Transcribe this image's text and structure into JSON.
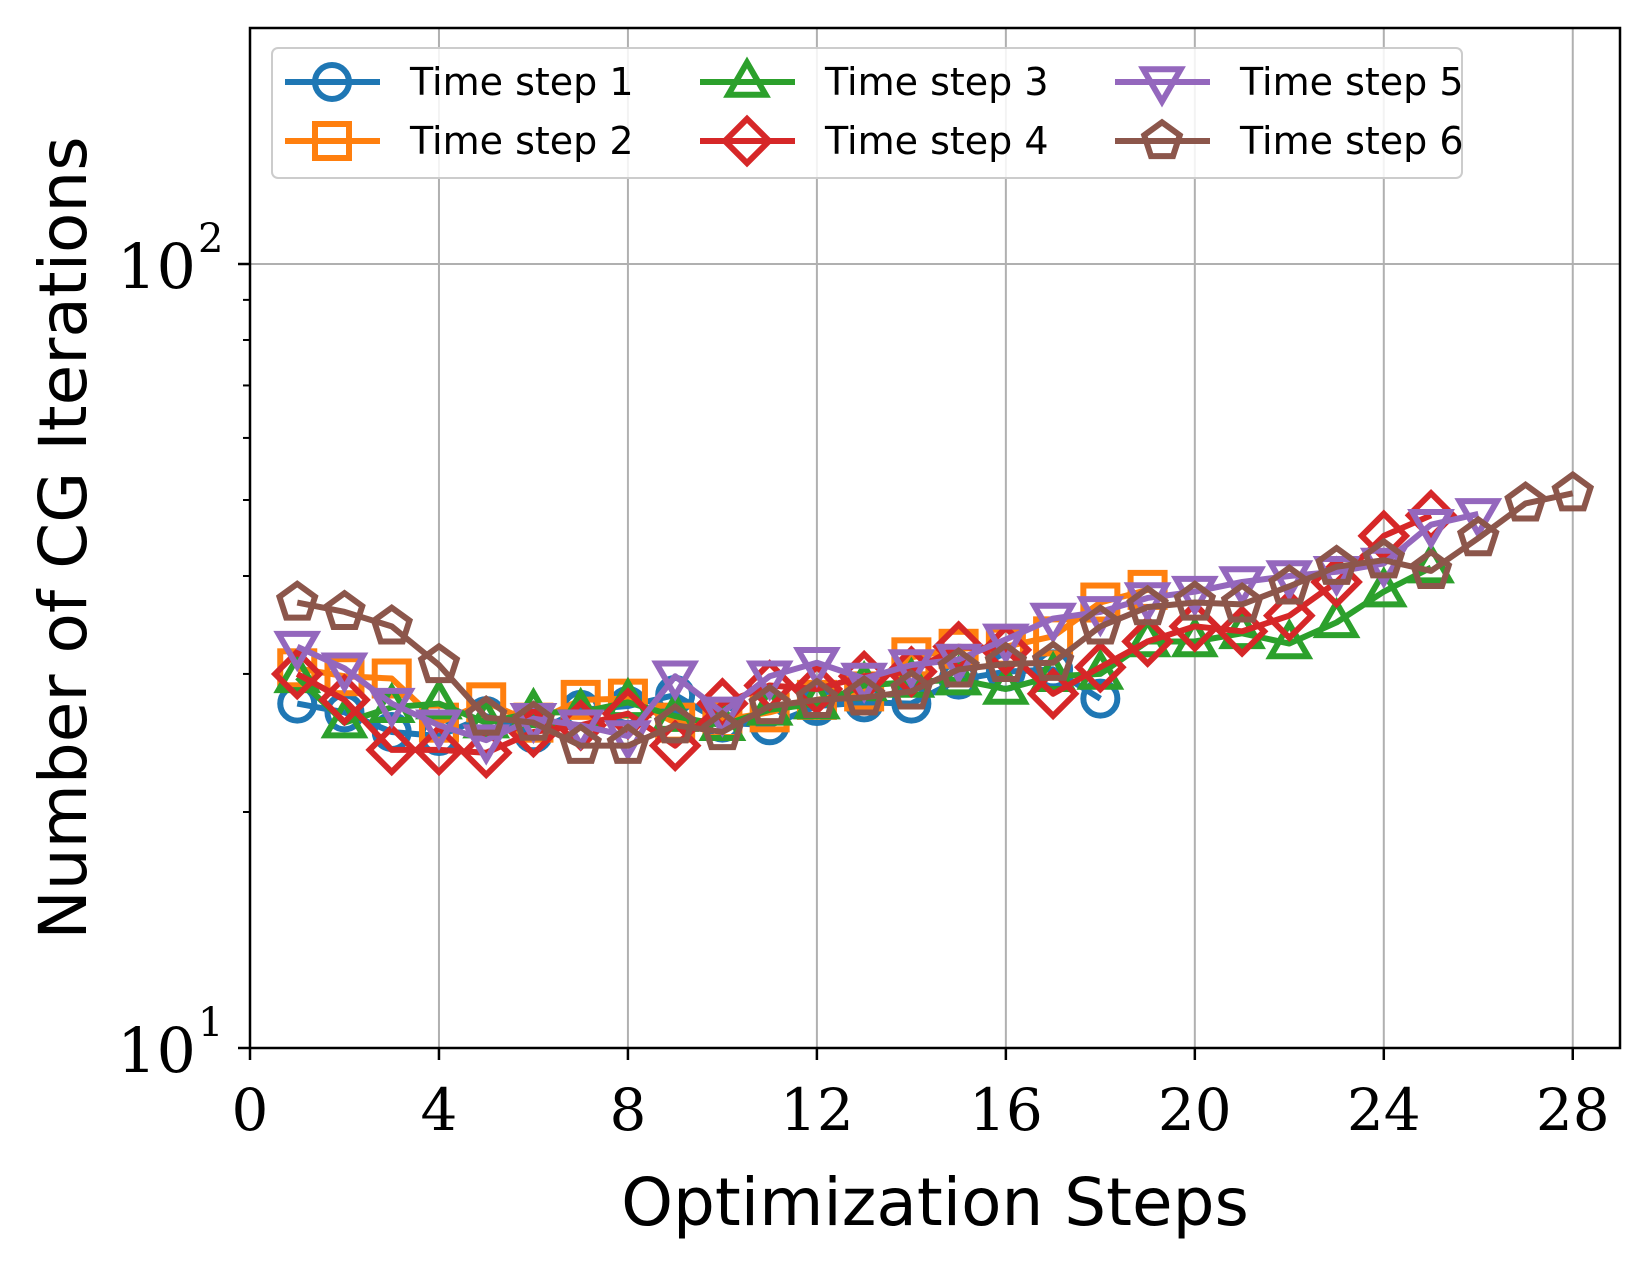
{
  "chart_data": {
    "type": "line",
    "xlabel": "Optimization Steps",
    "ylabel": "Number of CG Iterations",
    "xlim": [
      0,
      29
    ],
    "ylim": [
      10,
      200
    ],
    "yscale": "log",
    "grid": true,
    "x_ticks": [
      0,
      4,
      8,
      12,
      16,
      20,
      24,
      28
    ],
    "y_ticks": [
      {
        "value": 10,
        "base": "10",
        "exp": "1"
      },
      {
        "value": 100,
        "base": "10",
        "exp": "2"
      }
    ],
    "legend_position": "top-left",
    "series": [
      {
        "name": "Time step 1",
        "color": "#1f77b4",
        "marker": "circle",
        "x": [
          1,
          2,
          3,
          4,
          5,
          6,
          7,
          8,
          9,
          10,
          11,
          12,
          13,
          14,
          15,
          16,
          17,
          18
        ],
        "y": [
          27.5,
          26.8,
          25.3,
          25.0,
          26.5,
          25.2,
          27.0,
          27.3,
          28.2,
          26.0,
          25.8,
          27.3,
          27.6,
          27.5,
          29.5,
          30.2,
          30.4,
          27.9
        ]
      },
      {
        "name": "Time step 2",
        "color": "#ff7f0e",
        "marker": "square",
        "x": [
          1,
          2,
          3,
          4,
          5,
          6,
          7,
          8,
          9,
          10,
          11,
          12,
          13,
          14,
          15,
          16,
          17,
          18,
          19
        ],
        "y": [
          30.5,
          29.8,
          29.6,
          26.0,
          27.6,
          26.0,
          27.8,
          27.9,
          26.0,
          26.2,
          26.8,
          27.8,
          28.5,
          31.5,
          32.3,
          32.5,
          33.5,
          37.0,
          38.4
        ]
      },
      {
        "name": "Time step 3",
        "color": "#2ca02c",
        "marker": "triangle-up",
        "x": [
          1,
          2,
          3,
          4,
          5,
          6,
          7,
          8,
          9,
          10,
          11,
          12,
          13,
          14,
          15,
          16,
          17,
          18,
          19,
          20,
          21,
          22,
          23,
          24,
          25
        ],
        "y": [
          29.7,
          26.0,
          27.2,
          27.5,
          26.0,
          26.8,
          26.8,
          27.6,
          26.5,
          25.8,
          27.0,
          27.5,
          29.0,
          29.3,
          29.5,
          28.7,
          29.8,
          30.0,
          33.0,
          33.0,
          33.8,
          32.8,
          34.9,
          38.2,
          41.0
        ]
      },
      {
        "name": "Time step 4",
        "color": "#d62728",
        "marker": "diamond",
        "x": [
          1,
          2,
          3,
          4,
          5,
          6,
          7,
          8,
          9,
          10,
          11,
          12,
          13,
          14,
          15,
          16,
          17,
          18,
          19,
          20,
          21,
          22,
          23,
          24,
          25
        ],
        "y": [
          30.0,
          27.8,
          24.0,
          24.0,
          23.8,
          25.3,
          25.8,
          26.7,
          24.3,
          27.5,
          29.0,
          28.7,
          29.8,
          30.2,
          32.5,
          32.2,
          28.3,
          30.6,
          33.0,
          34.5,
          34.0,
          35.6,
          39.3,
          45.0,
          47.8
        ]
      },
      {
        "name": "Time step 5",
        "color": "#9467bd",
        "marker": "triangle-down",
        "x": [
          1,
          2,
          3,
          4,
          5,
          6,
          7,
          8,
          9,
          10,
          11,
          12,
          13,
          14,
          15,
          16,
          17,
          18,
          19,
          20,
          21,
          22,
          23,
          24,
          25,
          26
        ],
        "y": [
          32.5,
          30.5,
          27.5,
          25.8,
          24.7,
          26.3,
          25.8,
          25.0,
          29.8,
          26.8,
          29.8,
          31.0,
          29.6,
          30.8,
          31.3,
          33.2,
          35.3,
          36.0,
          37.5,
          38.2,
          39.3,
          40.0,
          40.5,
          41.5,
          46.5,
          48.0
        ]
      },
      {
        "name": "Time step 6",
        "color": "#8c564b",
        "marker": "pentagon",
        "x": [
          1,
          2,
          3,
          4,
          5,
          6,
          7,
          8,
          9,
          10,
          11,
          12,
          13,
          14,
          15,
          16,
          17,
          18,
          19,
          20,
          21,
          22,
          23,
          24,
          25,
          26,
          27,
          28
        ],
        "y": [
          37.0,
          36.0,
          34.5,
          30.8,
          26.4,
          26.0,
          24.3,
          24.3,
          25.8,
          25.3,
          27.3,
          27.8,
          28.0,
          28.5,
          30.4,
          30.9,
          31.0,
          34.5,
          36.5,
          37.0,
          36.8,
          38.8,
          41.1,
          41.9,
          40.6,
          44.7,
          49.5,
          51.0
        ]
      }
    ]
  }
}
